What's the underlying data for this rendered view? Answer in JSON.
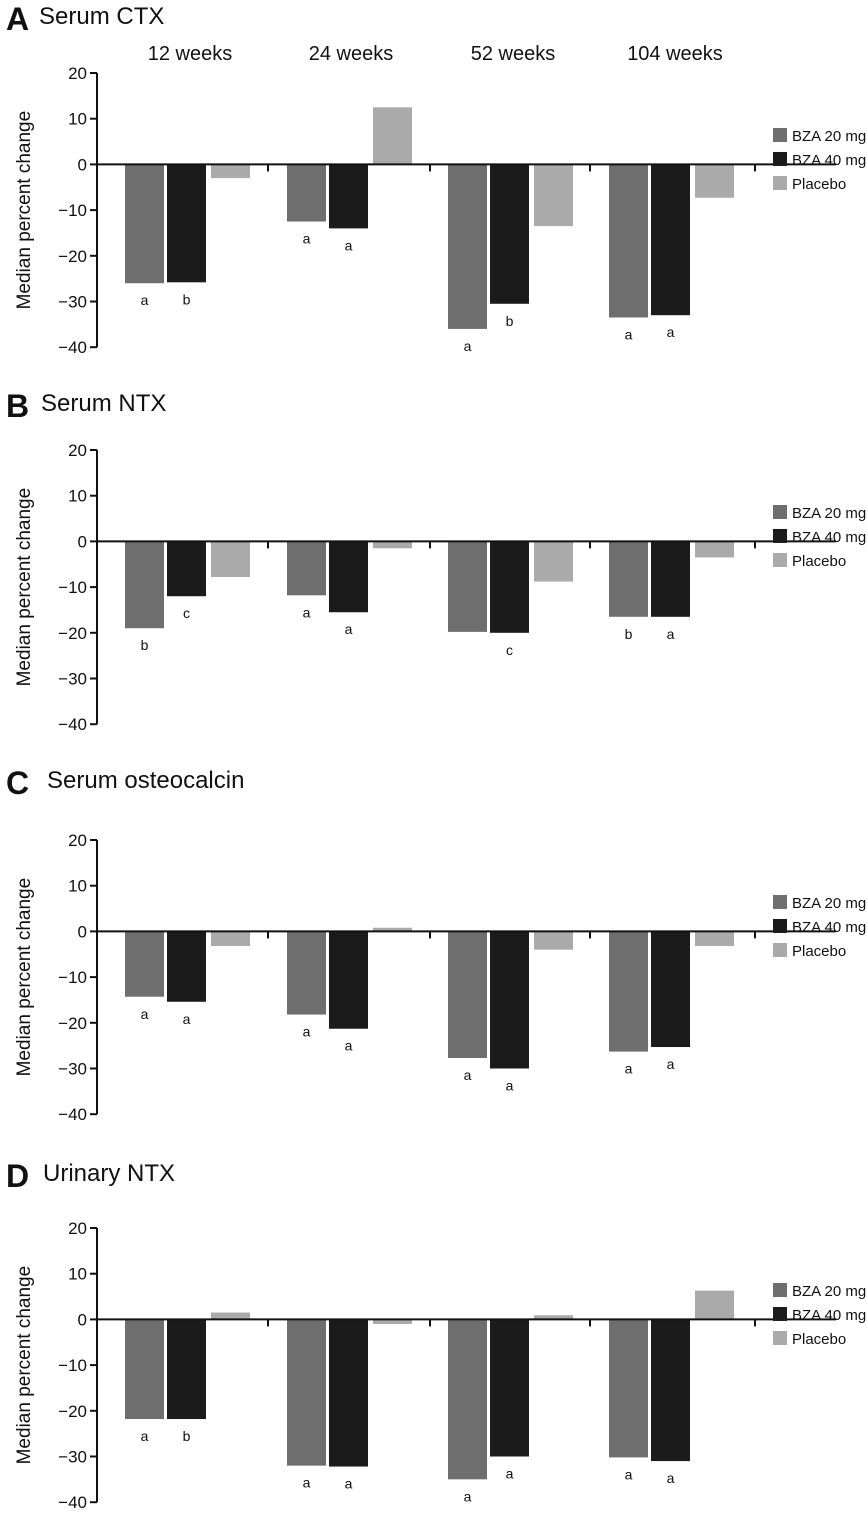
{
  "figure": {
    "time_labels": [
      "12 weeks",
      "24 weeks",
      "52 weeks",
      "104 weeks"
    ],
    "colors": {
      "BZA 20 mg": "#6e6e6e",
      "BZA 40 mg": "#1b1b1b",
      "Placebo": "#aaaaaa",
      "axis": "#111111"
    }
  },
  "chart_data": [
    {
      "type": "bar",
      "panel_letter": "A",
      "title": "Serum CTX",
      "ylabel": "Median percent change",
      "ylim": [
        -40,
        20
      ],
      "yticks": [
        20,
        10,
        0,
        -10,
        -20,
        -30,
        -40
      ],
      "ytick_labels": [
        "20",
        "10",
        "0",
        "−10",
        "−20",
        "−30",
        "−40"
      ],
      "categories": [
        "12 weeks",
        "24 weeks",
        "52 weeks",
        "104 weeks"
      ],
      "legend_position": "right",
      "series": [
        {
          "name": "BZA 20 mg",
          "values": [
            -26,
            -12.5,
            -36,
            -33.5
          ],
          "annotations": [
            "a",
            "a",
            "a",
            "a"
          ]
        },
        {
          "name": "BZA 40 mg",
          "values": [
            -25.8,
            -14,
            -30.5,
            -33
          ],
          "annotations": [
            "b",
            "a",
            "b",
            "a"
          ]
        },
        {
          "name": "Placebo",
          "values": [
            -3,
            12.5,
            -13.5,
            -7.3
          ],
          "annotations": [
            "",
            "",
            "",
            ""
          ]
        }
      ]
    },
    {
      "type": "bar",
      "panel_letter": "B",
      "title": "Serum NTX",
      "ylabel": "Median percent change",
      "ylim": [
        -40,
        20
      ],
      "yticks": [
        20,
        10,
        0,
        -10,
        -20,
        -30,
        -40
      ],
      "ytick_labels": [
        "20",
        "10",
        "0",
        "−10",
        "−20",
        "−30",
        "−40"
      ],
      "categories": [
        "12 weeks",
        "24 weeks",
        "52 weeks",
        "104 weeks"
      ],
      "legend_position": "right",
      "series": [
        {
          "name": "BZA 20 mg",
          "values": [
            -19,
            -11.8,
            -19.8,
            -16.5
          ],
          "annotations": [
            "b",
            "a",
            "",
            "b"
          ]
        },
        {
          "name": "BZA 40 mg",
          "values": [
            -12,
            -15.5,
            -20,
            -16.5
          ],
          "annotations": [
            "c",
            "a",
            "c",
            "a"
          ]
        },
        {
          "name": "Placebo",
          "values": [
            -7.8,
            -1.5,
            -8.8,
            -3.5
          ],
          "annotations": [
            "",
            "",
            "",
            ""
          ]
        }
      ]
    },
    {
      "type": "bar",
      "panel_letter": "C",
      "title": "Serum osteocalcin",
      "ylabel": "Median percent change",
      "ylim": [
        -40,
        20
      ],
      "yticks": [
        20,
        10,
        0,
        -10,
        -20,
        -30,
        -40
      ],
      "ytick_labels": [
        "20",
        "10",
        "0",
        "−10",
        "−20",
        "−30",
        "−40"
      ],
      "categories": [
        "12 weeks",
        "24 weeks",
        "52 weeks",
        "104 weeks"
      ],
      "legend_position": "right",
      "series": [
        {
          "name": "BZA 20 mg",
          "values": [
            -14.3,
            -18.2,
            -27.7,
            -26.3
          ],
          "annotations": [
            "a",
            "a",
            "a",
            "a"
          ]
        },
        {
          "name": "BZA 40 mg",
          "values": [
            -15.4,
            -21.3,
            -30,
            -25.3
          ],
          "annotations": [
            "a",
            "a",
            "a",
            "a"
          ]
        },
        {
          "name": "Placebo",
          "values": [
            -3.2,
            0.8,
            -4,
            -3.2
          ],
          "annotations": [
            "",
            "",
            "",
            ""
          ]
        }
      ]
    },
    {
      "type": "bar",
      "panel_letter": "D",
      "title": "Urinary NTX",
      "ylabel": "Median percent change",
      "ylim": [
        -40,
        20
      ],
      "yticks": [
        20,
        10,
        0,
        -10,
        -20,
        -30,
        -40
      ],
      "ytick_labels": [
        "20",
        "10",
        "0",
        "−10",
        "−20",
        "−30",
        "−40"
      ],
      "categories": [
        "12 weeks",
        "24 weeks",
        "52 weeks",
        "104 weeks"
      ],
      "legend_position": "right",
      "series": [
        {
          "name": "BZA 20 mg",
          "values": [
            -21.8,
            -32,
            -35,
            -30.2
          ],
          "annotations": [
            "a",
            "a",
            "a",
            "a"
          ]
        },
        {
          "name": "BZA 40 mg",
          "values": [
            -21.8,
            -32.2,
            -30,
            -31
          ],
          "annotations": [
            "b",
            "a",
            "a",
            "a"
          ]
        },
        {
          "name": "Placebo",
          "values": [
            1.5,
            -1,
            0.9,
            6.3
          ],
          "annotations": [
            "",
            "",
            "",
            ""
          ]
        }
      ]
    }
  ]
}
